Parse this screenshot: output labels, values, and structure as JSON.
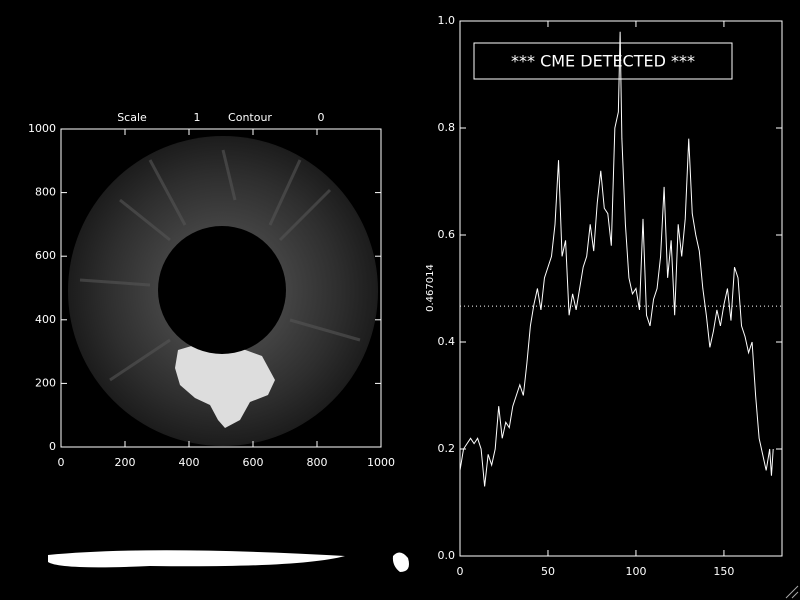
{
  "chart_data": [
    {
      "type": "image",
      "title_items": [
        "Scale",
        "1",
        "Contour",
        "0"
      ],
      "xlim": [
        0,
        1000
      ],
      "ylim": [
        0,
        1000
      ],
      "xticks": [
        0,
        200,
        400,
        600,
        800,
        1000
      ],
      "yticks": [
        0,
        200,
        400,
        600,
        800,
        1000
      ]
    },
    {
      "type": "line",
      "annotation": "*** CME DETECTED ***",
      "threshold": 0.467014,
      "color": "#ffffff",
      "xlim": [
        0,
        183
      ],
      "ylim": [
        0,
        1
      ],
      "xticks": [
        0,
        50,
        100,
        150
      ],
      "yticks": [
        {
          "value": 0,
          "label": "0.0"
        },
        0.2,
        0.4,
        0.6,
        0.8,
        {
          "value": 1,
          "label": "1.0"
        }
      ],
      "x": [
        0,
        2,
        4,
        6,
        8,
        10,
        12,
        14,
        16,
        18,
        20,
        22,
        24,
        26,
        28,
        30,
        32,
        34,
        36,
        38,
        40,
        42,
        44,
        46,
        48,
        50,
        52,
        54,
        56,
        58,
        60,
        62,
        64,
        66,
        68,
        70,
        72,
        74,
        76,
        78,
        80,
        82,
        84,
        86,
        88,
        90,
        91,
        92,
        94,
        96,
        98,
        100,
        102,
        104,
        106,
        108,
        110,
        112,
        114,
        116,
        118,
        120,
        122,
        124,
        126,
        128,
        130,
        132,
        134,
        136,
        138,
        140,
        142,
        144,
        146,
        148,
        150,
        152,
        154,
        156,
        158,
        160,
        162,
        164,
        166,
        168,
        170,
        172,
        174,
        176,
        177,
        178
      ],
      "values": [
        0.16,
        0.2,
        0.21,
        0.22,
        0.21,
        0.22,
        0.2,
        0.13,
        0.19,
        0.17,
        0.2,
        0.28,
        0.22,
        0.25,
        0.24,
        0.28,
        0.3,
        0.32,
        0.3,
        0.36,
        0.43,
        0.47,
        0.5,
        0.46,
        0.52,
        0.54,
        0.56,
        0.62,
        0.74,
        0.56,
        0.59,
        0.45,
        0.49,
        0.46,
        0.5,
        0.54,
        0.56,
        0.62,
        0.57,
        0.66,
        0.72,
        0.65,
        0.64,
        0.58,
        0.8,
        0.83,
        0.98,
        0.78,
        0.62,
        0.52,
        0.49,
        0.5,
        0.46,
        0.63,
        0.45,
        0.43,
        0.48,
        0.5,
        0.56,
        0.69,
        0.52,
        0.59,
        0.45,
        0.62,
        0.56,
        0.63,
        0.78,
        0.64,
        0.6,
        0.57,
        0.5,
        0.45,
        0.39,
        0.42,
        0.46,
        0.43,
        0.47,
        0.5,
        0.44,
        0.54,
        0.52,
        0.43,
        0.41,
        0.38,
        0.4,
        0.3,
        0.22,
        0.19,
        0.16,
        0.2,
        0.15,
        0.2
      ]
    }
  ]
}
